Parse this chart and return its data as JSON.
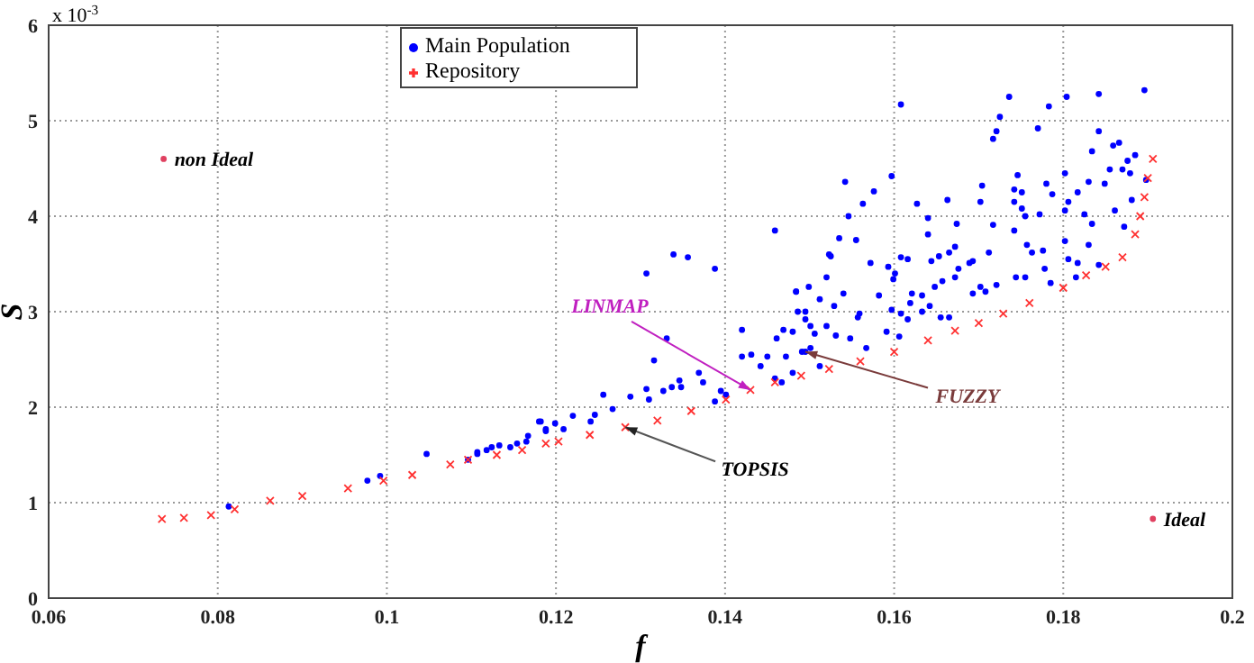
{
  "chart_data": {
    "type": "scatter",
    "xlabel": "f",
    "ylabel": "S",
    "xlim": [
      0.06,
      0.2
    ],
    "xticks": [
      0.06,
      0.08,
      0.1,
      0.12,
      0.14,
      0.16,
      0.18,
      0.2
    ],
    "ylim": [
      0,
      6
    ],
    "yticks": [
      0,
      1,
      2,
      3,
      4,
      5,
      6
    ],
    "grid": true,
    "legend": "top",
    "annotations": [
      "x 10$^{-3}$",
      {
        "text": "non Ideal",
        "x": 0.0736,
        "y": 4.6
      },
      {
        "text": "Ideal",
        "x": 0.1906,
        "y": 0.83
      },
      {
        "text": "LINMAP",
        "x": 0.143,
        "y": 2.18
      },
      {
        "text": "TOPSIS",
        "x": 0.1282,
        "y": 1.79
      },
      {
        "text": "FUZZY",
        "x": 0.1495,
        "y": 2.58
      }
    ],
    "series": [
      {
        "name": "Main Population",
        "color": "#0000ff",
        "marker": "circle",
        "x": [
          0.1608,
          0.1736,
          0.1804,
          0.1842,
          0.1896,
          0.1783,
          0.1725,
          0.1721,
          0.1717,
          0.177,
          0.1842,
          0.1866,
          0.1859,
          0.1834,
          0.1885,
          0.1876,
          0.187,
          0.1879,
          0.1898,
          0.1855,
          0.183,
          0.1849,
          0.1746,
          0.1742,
          0.1751,
          0.178,
          0.1802,
          0.1817,
          0.1787,
          0.1742,
          0.1751,
          0.1755,
          0.1772,
          0.1802,
          0.1806,
          0.1825,
          0.1834,
          0.1861,
          0.1872,
          0.1881,
          0.1704,
          0.1702,
          0.1717,
          0.1742,
          0.1757,
          0.1763,
          0.1776,
          0.1778,
          0.1755,
          0.1744,
          0.1802,
          0.1806,
          0.1817,
          0.183,
          0.1842,
          0.1815,
          0.1785,
          0.1712,
          0.1693,
          0.1702,
          0.1721,
          0.1674,
          0.1663,
          0.164,
          0.1672,
          0.1665,
          0.1653,
          0.1644,
          0.164,
          0.1689,
          0.1676,
          0.1672,
          0.1627,
          0.1597,
          0.1576,
          0.1542,
          0.1563,
          0.1546,
          0.1572,
          0.1593,
          0.1608,
          0.1616,
          0.1601,
          0.1599,
          0.1621,
          0.1633,
          0.1648,
          0.1657,
          0.1642,
          0.1619,
          0.1608,
          0.1597,
          0.1616,
          0.1582,
          0.1559,
          0.1557,
          0.1591,
          0.1606,
          0.1655,
          0.1665,
          0.1693,
          0.1708,
          0.152,
          0.1525,
          0.1535,
          0.1555,
          0.1512,
          0.1529,
          0.154,
          0.152,
          0.1531,
          0.1486,
          0.1495,
          0.1501,
          0.1506,
          0.148,
          0.1469,
          0.1501,
          0.1491,
          0.1472,
          0.1484,
          0.1459,
          0.1567,
          0.1548,
          0.1633,
          0.1339,
          0.1356,
          0.1307,
          0.1388,
          0.1331,
          0.1316,
          0.1346,
          0.1337,
          0.1348,
          0.1369,
          0.1374,
          0.1327,
          0.1307,
          0.1288,
          0.1256,
          0.1267,
          0.1246,
          0.122,
          0.1241,
          0.1199,
          0.1209,
          0.118,
          0.1167,
          0.1188,
          0.1154,
          0.1124,
          0.1107,
          0.131,
          0.1395,
          0.1401,
          0.1388,
          0.142,
          0.142,
          0.1431,
          0.1442,
          0.145,
          0.1461,
          0.1484,
          0.1499,
          0.1495,
          0.1459,
          0.1467,
          0.148,
          0.1495,
          0.1512,
          0.1523,
          0.1047,
          0.0992,
          0.0977,
          0.0813,
          0.1182,
          0.1133,
          0.1107,
          0.1096,
          0.1165,
          0.1188,
          0.1118,
          0.1146
        ],
        "values": [
          5.17,
          5.25,
          5.25,
          5.28,
          5.32,
          5.15,
          5.04,
          4.89,
          4.81,
          4.92,
          4.89,
          4.77,
          4.74,
          4.68,
          4.64,
          4.58,
          4.49,
          4.45,
          4.38,
          4.49,
          4.36,
          4.34,
          4.43,
          4.28,
          4.25,
          4.34,
          4.45,
          4.25,
          4.23,
          4.15,
          4.08,
          4.0,
          4.02,
          4.06,
          4.15,
          4.02,
          3.92,
          4.06,
          3.89,
          4.17,
          4.32,
          4.15,
          3.91,
          3.85,
          3.7,
          3.62,
          3.64,
          3.45,
          3.36,
          3.36,
          3.74,
          3.55,
          3.51,
          3.7,
          3.49,
          3.36,
          3.3,
          3.62,
          3.53,
          3.26,
          3.28,
          3.92,
          4.17,
          3.98,
          3.68,
          3.62,
          3.58,
          3.53,
          3.81,
          3.51,
          3.45,
          3.36,
          4.13,
          4.42,
          4.26,
          4.36,
          4.13,
          4.0,
          3.51,
          3.47,
          3.57,
          3.55,
          3.4,
          3.34,
          3.19,
          3.17,
          3.26,
          3.32,
          3.06,
          3.09,
          2.98,
          3.02,
          2.92,
          3.17,
          2.98,
          2.94,
          2.79,
          2.74,
          2.94,
          2.94,
          3.19,
          3.21,
          3.36,
          3.58,
          3.77,
          3.75,
          3.13,
          3.06,
          3.19,
          2.85,
          2.75,
          3.0,
          2.92,
          2.85,
          2.77,
          2.79,
          2.81,
          2.62,
          2.58,
          2.53,
          3.21,
          3.85,
          2.62,
          2.72,
          3.0,
          3.6,
          3.57,
          3.4,
          3.45,
          2.72,
          2.49,
          2.28,
          2.21,
          2.21,
          2.36,
          2.26,
          2.17,
          2.19,
          2.11,
          2.13,
          1.98,
          1.92,
          1.91,
          1.85,
          1.83,
          1.77,
          1.85,
          1.7,
          1.75,
          1.62,
          1.58,
          1.53,
          2.08,
          2.17,
          2.13,
          2.06,
          2.81,
          2.53,
          2.55,
          2.43,
          2.53,
          2.72,
          3.21,
          3.26,
          3.0,
          2.3,
          2.26,
          2.36,
          2.58,
          2.43,
          3.6,
          1.51,
          1.28,
          1.23,
          0.96,
          1.85,
          1.6,
          1.51,
          1.45,
          1.64,
          1.77,
          1.55,
          1.58
        ]
      },
      {
        "name": "Repository",
        "color": "#ff3030",
        "marker": "cross",
        "x": [
          0.0734,
          0.076,
          0.0792,
          0.082,
          0.0862,
          0.09,
          0.0954,
          0.0996,
          0.103,
          0.1075,
          0.1096,
          0.113,
          0.116,
          0.1188,
          0.1203,
          0.124,
          0.1282,
          0.132,
          0.136,
          0.1401,
          0.143,
          0.1459,
          0.149,
          0.1523,
          0.156,
          0.16,
          0.164,
          0.1672,
          0.17,
          0.1729,
          0.176,
          0.18,
          0.1827,
          0.185,
          0.187,
          0.1885,
          0.1891,
          0.1896,
          0.19,
          0.1906
        ],
        "values": [
          0.83,
          0.84,
          0.87,
          0.93,
          1.02,
          1.07,
          1.15,
          1.23,
          1.29,
          1.4,
          1.45,
          1.5,
          1.55,
          1.62,
          1.64,
          1.71,
          1.79,
          1.86,
          1.96,
          2.08,
          2.18,
          2.26,
          2.33,
          2.4,
          2.48,
          2.58,
          2.7,
          2.8,
          2.88,
          2.98,
          3.09,
          3.25,
          3.38,
          3.47,
          3.57,
          3.81,
          4.0,
          4.2,
          4.4,
          4.6
        ]
      },
      {
        "color": "#e04060",
        "marker": "circle",
        "x": [
          0.0736,
          0.1906
        ],
        "values": [
          4.6,
          0.83
        ]
      }
    ]
  }
}
